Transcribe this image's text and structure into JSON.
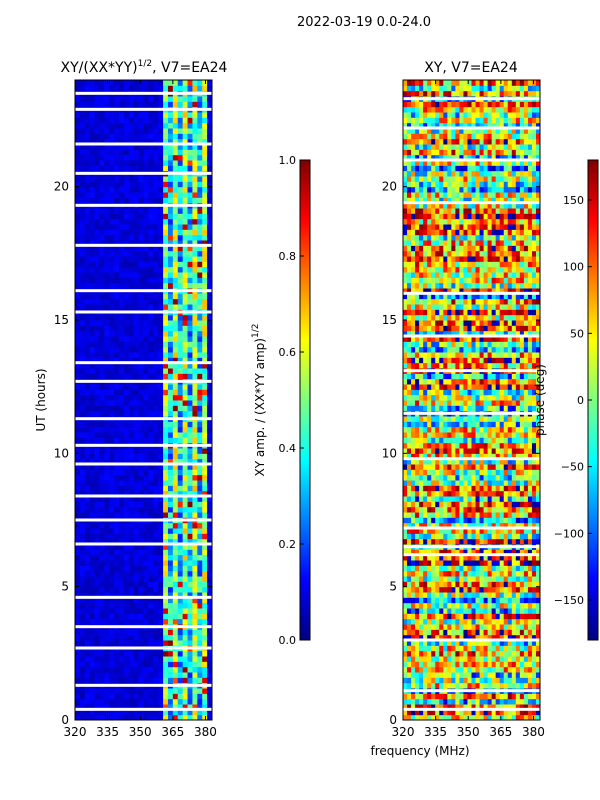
{
  "figure_title": "2022-03-19 0.0-24.0",
  "colors": {
    "jet": [
      "#00007f",
      "#0000ff",
      "#007fff",
      "#00ffff",
      "#7fff7f",
      "#ffff00",
      "#ff7f00",
      "#ff0000",
      "#7f0000"
    ],
    "gap": "#ffffff",
    "axis": "#000000"
  },
  "chart_data": [
    {
      "type": "heatmap",
      "title": "XY/(XX*YY)^1/2, V7=EA24",
      "title_main": "XY/(XX*YY)",
      "title_sup": "1/2",
      "title_tail": ", V7=EA24",
      "xlabel": "",
      "ylabel": "UT (hours)",
      "xlim": [
        320,
        383
      ],
      "ylim": [
        0,
        24
      ],
      "xticks": [
        320,
        335,
        350,
        365,
        380
      ],
      "yticks": [
        0,
        5,
        10,
        15,
        20
      ],
      "colorbar": {
        "label": "XY amp. / (XX*YY amp)^1/2",
        "label_main": "XY amp. / (XX*YY amp)",
        "label_sup": "1/2",
        "range": [
          0.0,
          1.0
        ],
        "ticks": [
          "0.0",
          "0.2",
          "0.4",
          "0.6",
          "0.8",
          "1.0"
        ],
        "tick_values": [
          0.0,
          0.2,
          0.4,
          0.6,
          0.8,
          1.0
        ]
      },
      "bright_channel_range_mhz": [
        360,
        380
      ],
      "flagged_ut_hours": [
        0.4,
        1.3,
        2.7,
        3.5,
        4.6,
        6.6,
        7.5,
        8.4,
        9.6,
        10.3,
        11.3,
        12.7,
        13.4,
        15.3,
        16.1,
        17.8,
        19.3,
        20.5,
        21.6,
        22.9,
        23.5
      ]
    },
    {
      "type": "heatmap",
      "title": "XY, V7=EA24",
      "xlabel": "frequency (MHz)",
      "ylabel": "",
      "xlim": [
        320,
        383
      ],
      "ylim": [
        0,
        24
      ],
      "xticks": [
        320,
        335,
        350,
        365,
        380
      ],
      "yticks": [
        0,
        5,
        10,
        15,
        20
      ],
      "colorbar": {
        "label": "phase (deg)",
        "range": [
          -180,
          180
        ],
        "ticks": [
          "150",
          "100",
          "50",
          "0",
          "−50",
          "−100",
          "−150"
        ],
        "tick_values": [
          150,
          100,
          50,
          0,
          -50,
          -100,
          -150
        ]
      },
      "flagged_ut_hours": [
        0.4,
        1.1,
        3.0,
        6.2,
        6.5,
        7.2,
        9.8,
        11.5,
        13.1,
        14.4,
        16.0,
        19.4,
        21.0,
        22.2,
        23.3
      ]
    }
  ]
}
